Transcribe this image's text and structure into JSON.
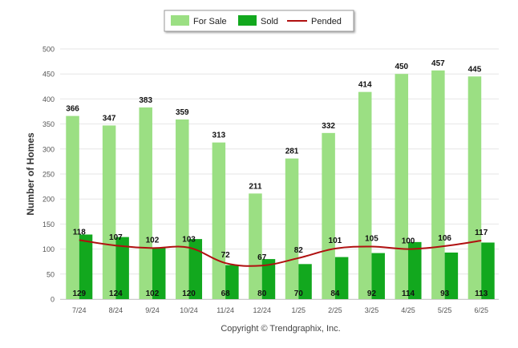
{
  "chart_data": {
    "type": "bar",
    "title": "",
    "xlabel": "",
    "ylabel": "Number of Homes",
    "ylim": [
      0,
      500
    ],
    "yticks": [
      0,
      50,
      100,
      150,
      200,
      250,
      300,
      350,
      400,
      450,
      500
    ],
    "grid": true,
    "legend_position": "top-center",
    "categories": [
      "7/24",
      "8/24",
      "9/24",
      "10/24",
      "11/24",
      "12/24",
      "1/25",
      "2/25",
      "3/25",
      "4/25",
      "5/25",
      "6/25"
    ],
    "series": [
      {
        "name": "For Sale",
        "type": "bar",
        "color": "#9bdf83",
        "values": [
          366,
          347,
          383,
          359,
          313,
          211,
          281,
          332,
          414,
          450,
          457,
          445
        ]
      },
      {
        "name": "Sold",
        "type": "bar",
        "color": "#12a81e",
        "values": [
          129,
          124,
          102,
          120,
          68,
          80,
          70,
          84,
          92,
          114,
          93,
          113
        ]
      },
      {
        "name": "Pended",
        "type": "line",
        "color": "#b01010",
        "values": [
          118,
          107,
          102,
          103,
          72,
          67,
          82,
          101,
          105,
          100,
          106,
          117
        ]
      }
    ],
    "credit": "Copyright © Trendgraphix, Inc."
  },
  "colors": {
    "grid": "#e6e6e6",
    "axis_text": "#555555",
    "label_text": "#111111",
    "legend_border": "#999999"
  }
}
